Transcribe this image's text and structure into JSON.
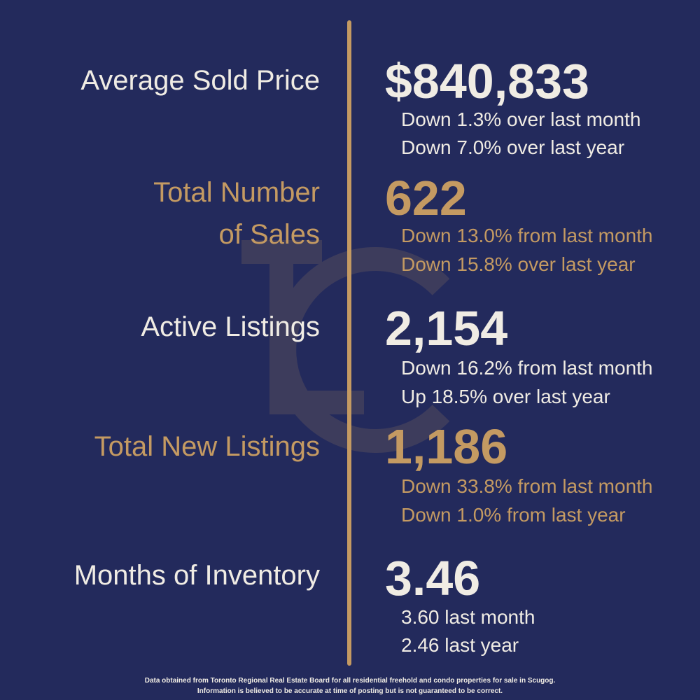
{
  "metrics": [
    {
      "label": [
        "Average Sold Price"
      ],
      "value": "$840,833",
      "details": [
        "Down 1.3% over last month",
        "Down 7.0% over last year"
      ]
    },
    {
      "label": [
        "Total Number",
        "of Sales"
      ],
      "value": "622",
      "details": [
        "Down 13.0% from last month",
        "Down 15.8% over last year"
      ]
    },
    {
      "label": [
        "Active Listings"
      ],
      "value": "2,154",
      "details": [
        "Down 16.2% from last month",
        "Up 18.5% over last year"
      ]
    },
    {
      "label": [
        "Total New Listings"
      ],
      "value": "1,186",
      "details": [
        "Down 33.8% from last month",
        "Down 1.0% from last year"
      ]
    },
    {
      "label": [
        "Months of Inventory"
      ],
      "value": "3.46",
      "details": [
        "3.60 last month",
        "2.46 last year"
      ]
    }
  ],
  "footer": [
    "Data obtained from Toronto Regional Real Estate Board for all residential freehold and condo properties for sale in Scugog.",
    "Information is believed to be accurate at time of posting but is not guaranteed to be correct."
  ]
}
